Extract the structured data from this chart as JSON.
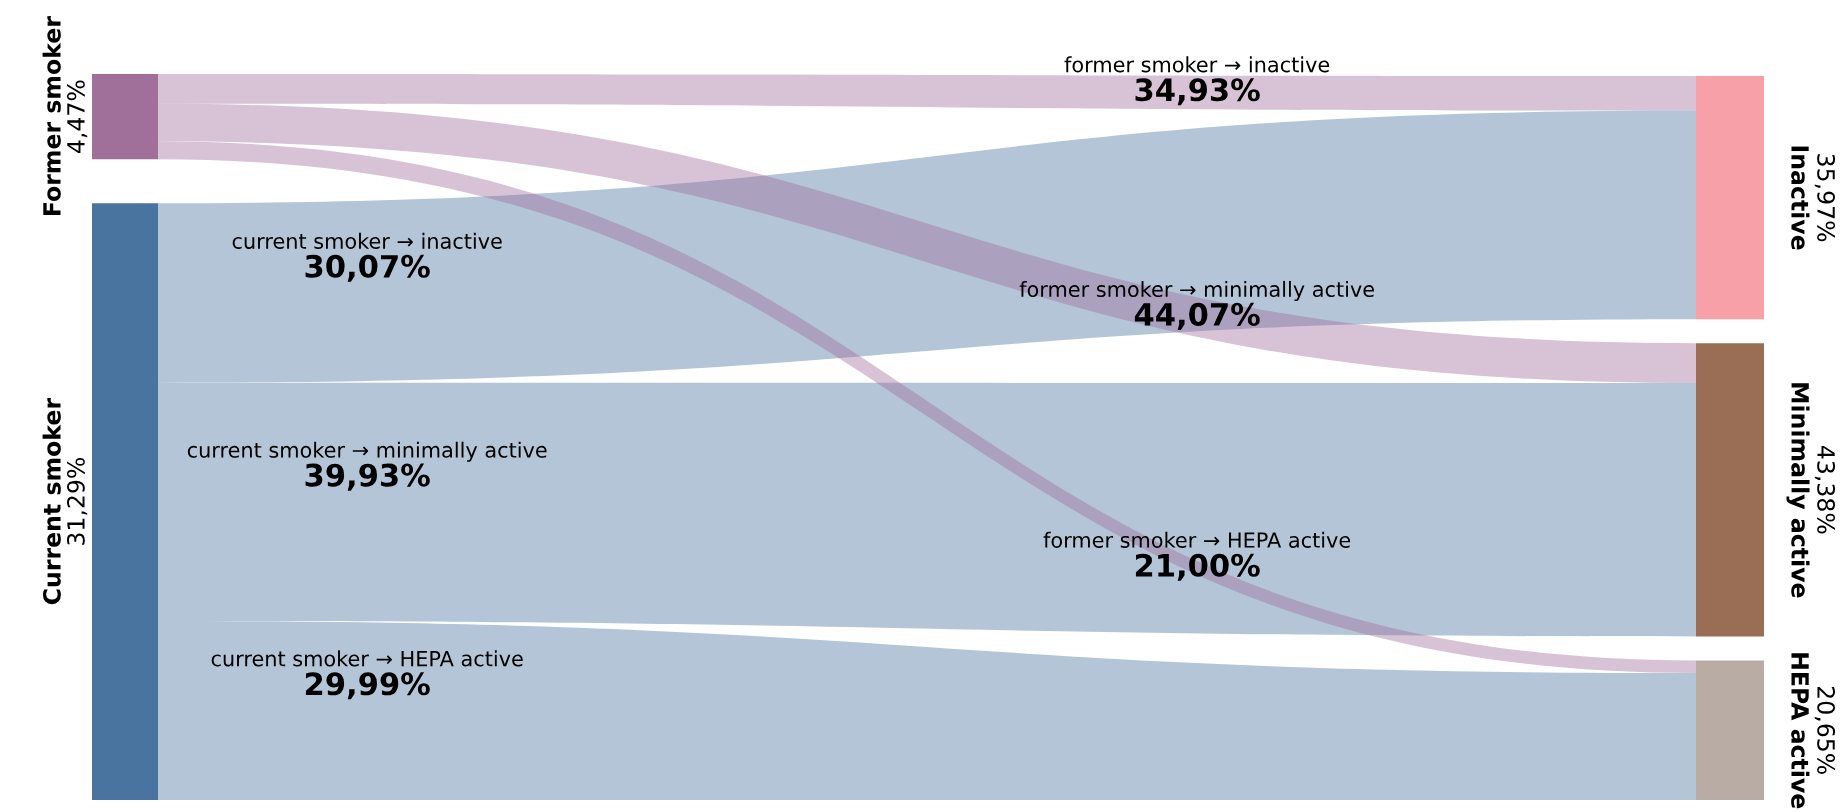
{
  "chart_data": {
    "type": "other",
    "categories": [
      "Former smoker",
      "Current smoker",
      "Inactive",
      "Minimally active",
      "HEPA active"
    ],
    "values": [
      4.47,
      31.29,
      35.97,
      43.38,
      20.65
    ],
    "value_labels": [
      "4,47%",
      "31,29%",
      "35,97%",
      "43,38%",
      "20,65%"
    ],
    "colors": [
      "#a0709a",
      "#4a74a0",
      "#f8a0a8",
      "#9a6e55",
      "#b8aca5"
    ],
    "annotations": [
      "former smoker → inactive",
      "34,93%",
      "former smoker → minimally active",
      "44,07%",
      "former smoker → HEPA active",
      "21,00%",
      "current smoker → inactive",
      "30,07%",
      "current smoker → minimally active",
      "39,93%",
      "current smoker → HEPA active",
      "29,99%"
    ]
  }
}
